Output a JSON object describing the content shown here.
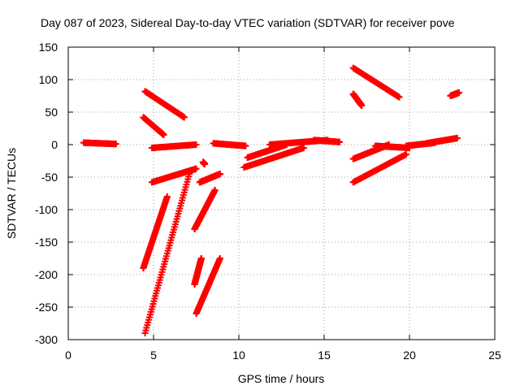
{
  "chart_data": {
    "type": "scatter",
    "title": "Day 087 of 2023, Sidereal Day-to-day VTEC variation (SDTVAR) for receiver pove",
    "xlabel": "GPS time / hours",
    "ylabel": "SDTVAR / TECUs",
    "xlim": [
      0,
      25
    ],
    "ylim": [
      -300,
      150
    ],
    "xticks": [
      "0",
      "5",
      "10",
      "15",
      "20",
      "25"
    ],
    "yticks": [
      "-300",
      "-250",
      "-200",
      "-150",
      "-100",
      "-50",
      "0",
      "50",
      "100",
      "150"
    ],
    "grid": true,
    "marker": "plus",
    "color": "#ff0000",
    "segments": [
      {
        "x0": 0.9,
        "y0": 3,
        "x1": 2.8,
        "y1": 1
      },
      {
        "x0": 4.5,
        "y0": 82,
        "x1": 6.8,
        "y1": 42
      },
      {
        "x0": 4.4,
        "y0": 42,
        "x1": 5.6,
        "y1": 15
      },
      {
        "x0": 4.9,
        "y0": -5,
        "x1": 7.5,
        "y1": 0
      },
      {
        "x0": 4.9,
        "y0": -58,
        "x1": 7.5,
        "y1": -37
      },
      {
        "x0": 4.4,
        "y0": -190,
        "x1": 5.8,
        "y1": -80
      },
      {
        "x0": 4.5,
        "y0": -290,
        "x1": 7.1,
        "y1": -45
      },
      {
        "x0": 7.5,
        "y0": -260,
        "x1": 8.9,
        "y1": -175
      },
      {
        "x0": 7.4,
        "y0": -215,
        "x1": 7.8,
        "y1": -175
      },
      {
        "x0": 7.4,
        "y0": -130,
        "x1": 8.6,
        "y1": -70
      },
      {
        "x0": 7.7,
        "y0": -58,
        "x1": 8.9,
        "y1": -45
      },
      {
        "x0": 7.9,
        "y0": -27,
        "x1": 8.0,
        "y1": -30
      },
      {
        "x0": 8.5,
        "y0": 2,
        "x1": 10.4,
        "y1": -2
      },
      {
        "x0": 10.3,
        "y0": -35,
        "x1": 13.8,
        "y1": -5
      },
      {
        "x0": 10.5,
        "y0": -20,
        "x1": 12.8,
        "y1": 0
      },
      {
        "x0": 11.8,
        "y0": 0,
        "x1": 15.2,
        "y1": 7
      },
      {
        "x0": 14.4,
        "y0": 7,
        "x1": 15.9,
        "y1": 4
      },
      {
        "x0": 16.7,
        "y0": 118,
        "x1": 19.4,
        "y1": 73
      },
      {
        "x0": 16.7,
        "y0": 78,
        "x1": 17.2,
        "y1": 60
      },
      {
        "x0": 16.7,
        "y0": -22,
        "x1": 18.8,
        "y1": 0
      },
      {
        "x0": 16.7,
        "y0": -58,
        "x1": 19.8,
        "y1": -15
      },
      {
        "x0": 18.0,
        "y0": -2,
        "x1": 20.0,
        "y1": -5
      },
      {
        "x0": 19.8,
        "y0": -2,
        "x1": 21.5,
        "y1": 3
      },
      {
        "x0": 21.0,
        "y0": 2,
        "x1": 22.8,
        "y1": 10
      },
      {
        "x0": 22.4,
        "y0": 75,
        "x1": 22.9,
        "y1": 80
      }
    ]
  }
}
